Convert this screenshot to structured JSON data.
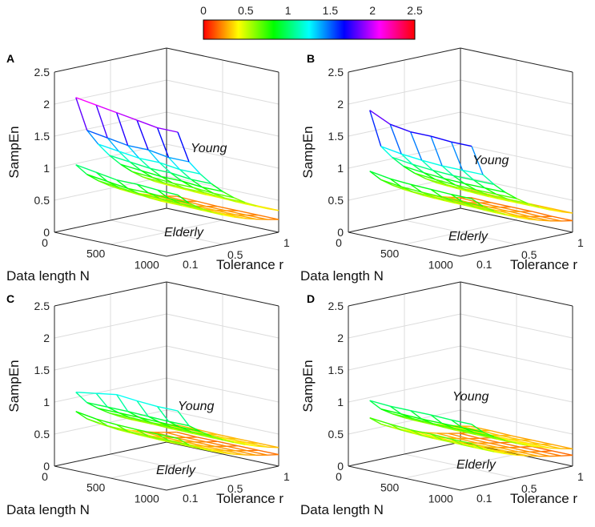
{
  "chart_data": {
    "type": "surface3d",
    "colorbar": {
      "min": 0,
      "max": 2.5,
      "ticks": [
        "0",
        "0.5",
        "1",
        "1.5",
        "2",
        "2.5"
      ],
      "colormap": "hsv"
    },
    "panels": [
      {
        "label": "A",
        "zlabel": "SampEn",
        "xlabel": "Data length N",
        "ylabel": "Tolerance r",
        "zticks": [
          "0",
          "0.5",
          "1",
          "1.5",
          "2",
          "2.5"
        ],
        "nticks": [
          "0",
          "500",
          "1000"
        ],
        "rticks": [
          "0.1",
          "0.5",
          "1"
        ],
        "zlim": [
          0,
          2.5
        ],
        "annotations": [
          "Young",
          "Elderly"
        ],
        "N": [
          100,
          300,
          500,
          700,
          900,
          1100
        ],
        "r": [
          0.1,
          0.2,
          0.3,
          0.4,
          0.5,
          0.6,
          0.7,
          0.8,
          0.9,
          1.0
        ],
        "young_r01": [
          2.1,
          2.05,
          2.0,
          1.95,
          1.9,
          1.9
        ],
        "young_r02": [
          1.55,
          1.5,
          1.45,
          1.45,
          1.4,
          1.4
        ],
        "young_r1": [
          0.37,
          0.36,
          0.35,
          0.35,
          0.34,
          0.34
        ],
        "elderly_r01": [
          1.05,
          1.0,
          0.95,
          0.95,
          0.93,
          0.92
        ],
        "elderly_r1": [
          0.22,
          0.21,
          0.2,
          0.2,
          0.2,
          0.2
        ]
      },
      {
        "label": "B",
        "zlabel": "SampEn",
        "xlabel": "Data length N",
        "ylabel": "Tolerance r",
        "zticks": [
          "0",
          "0.5",
          "1",
          "1.5",
          "2",
          "2.5"
        ],
        "nticks": [
          "0",
          "500",
          "1000"
        ],
        "rticks": [
          "0.1",
          "0.5",
          "1"
        ],
        "zlim": [
          0,
          2.5
        ],
        "annotations": [
          "Young",
          "Elderly"
        ],
        "N": [
          100,
          300,
          500,
          700,
          900,
          1100
        ],
        "r": [
          0.1,
          0.2,
          0.3,
          0.4,
          0.5,
          0.6,
          0.7,
          0.8,
          0.9,
          1.0
        ],
        "young_r01": [
          1.9,
          1.75,
          1.7,
          1.7,
          1.68,
          1.68
        ],
        "young_r02": [
          1.3,
          1.25,
          1.22,
          1.2,
          1.2,
          1.2
        ],
        "young_r1": [
          0.32,
          0.31,
          0.3,
          0.3,
          0.3,
          0.3
        ],
        "elderly_r01": [
          0.95,
          0.9,
          0.88,
          0.87,
          0.86,
          0.86
        ],
        "elderly_r1": [
          0.2,
          0.19,
          0.19,
          0.19,
          0.18,
          0.18
        ]
      },
      {
        "label": "C",
        "zlabel": "SampEn",
        "xlabel": "Data length N",
        "ylabel": "Tolerance r",
        "zticks": [
          "0",
          "0.5",
          "1",
          "1.5",
          "2",
          "2.5"
        ],
        "nticks": [
          "0",
          "500",
          "1000"
        ],
        "rticks": [
          "0.1",
          "0.5",
          "1"
        ],
        "zlim": [
          0,
          2.5
        ],
        "annotations": [
          "Young",
          "Elderly"
        ],
        "N": [
          100,
          300,
          500,
          700,
          900,
          1100
        ],
        "r": [
          0.1,
          0.2,
          0.3,
          0.4,
          0.5,
          0.6,
          0.7,
          0.8,
          0.9,
          1.0
        ],
        "young_r01": [
          1.15,
          1.2,
          1.25,
          1.22,
          1.2,
          1.2
        ],
        "young_r02": [
          0.95,
          0.95,
          0.95,
          0.94,
          0.93,
          0.93
        ],
        "young_r1": [
          0.3,
          0.3,
          0.29,
          0.29,
          0.29,
          0.29
        ],
        "elderly_r01": [
          0.85,
          0.8,
          0.78,
          0.77,
          0.77,
          0.77
        ],
        "elderly_r1": [
          0.19,
          0.18,
          0.18,
          0.18,
          0.18,
          0.18
        ]
      },
      {
        "label": "D",
        "zlabel": "SampEn",
        "xlabel": "Data length N",
        "ylabel": "Tolerance r",
        "zticks": [
          "0",
          "0.5",
          "1",
          "1.5",
          "2",
          "2.5"
        ],
        "nticks": [
          "0",
          "500",
          "1000"
        ],
        "rticks": [
          "0.1",
          "0.5",
          "1"
        ],
        "zlim": [
          0,
          2.5
        ],
        "annotations": [
          "Young",
          "Elderly"
        ],
        "N": [
          100,
          300,
          500,
          700,
          900,
          1100
        ],
        "r": [
          0.1,
          0.2,
          0.3,
          0.4,
          0.5,
          0.6,
          0.7,
          0.8,
          0.9,
          1.0
        ],
        "young_r01": [
          1.02,
          1.0,
          1.0,
          1.0,
          0.99,
          0.99
        ],
        "young_r02": [
          0.85,
          0.84,
          0.83,
          0.83,
          0.83,
          0.83
        ],
        "young_r1": [
          0.28,
          0.28,
          0.27,
          0.27,
          0.27,
          0.27
        ],
        "elderly_r01": [
          0.75,
          0.72,
          0.7,
          0.7,
          0.69,
          0.69
        ],
        "elderly_r1": [
          0.18,
          0.17,
          0.17,
          0.17,
          0.17,
          0.17
        ]
      }
    ]
  }
}
